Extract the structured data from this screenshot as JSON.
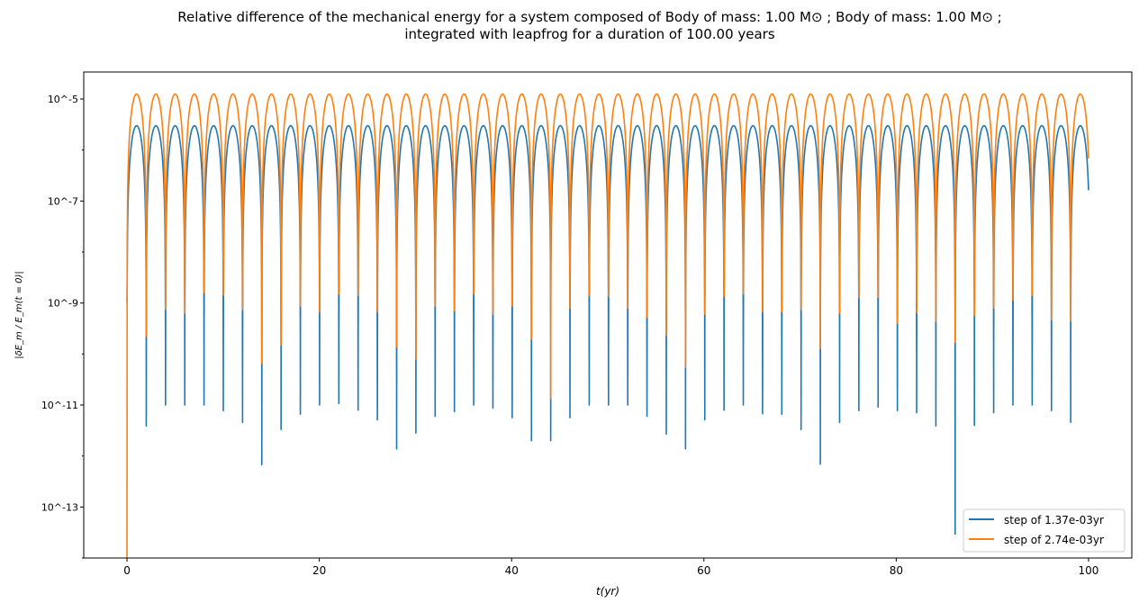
{
  "chart_data": {
    "type": "line",
    "title_line1": "Relative difference of the mechanical energy for a system composed of Body of mass: 1.00 M⊙ ; Body of mass: 1.00 M⊙ ;",
    "title_line2": "integrated with leapfrog for a duration of 100.00 years",
    "xlabel": "t(yr)",
    "ylabel": "|δE_m / E_m(t = 0)|",
    "xlim": [
      -4.5,
      104.5
    ],
    "ylim_log10": [
      -14.0,
      -4.47
    ],
    "yscale": "log",
    "xticks": [
      0,
      20,
      40,
      60,
      80,
      100
    ],
    "xtick_labels": [
      "0",
      "20",
      "40",
      "60",
      "80",
      "100"
    ],
    "yticks_log10": [
      -5,
      -7,
      -9,
      -11,
      -13
    ],
    "ytick_labels": [
      "10^-5",
      "10^-7",
      "10^-9",
      "10^-11",
      "10^-13"
    ],
    "legend_location": "lower-right",
    "period_yr": 2.003,
    "series": [
      {
        "name": "step of 1.37e-03yr",
        "color": "#1f77b4",
        "peak": 3e-06,
        "dip_minima_log10": [
          -9.0,
          -11.41,
          -11.0,
          -11.0,
          -11.0,
          -11.11,
          -11.34,
          -12.17,
          -11.48,
          -11.18,
          -11.0,
          -10.97,
          -11.1,
          -11.29,
          -11.86,
          -11.55,
          -11.22,
          -11.13,
          -11.0,
          -11.06,
          -11.25,
          -11.7,
          -11.7,
          -11.25,
          -11.0,
          -11.0,
          -11.0,
          -11.22,
          -11.57,
          -11.86,
          -11.29,
          -11.1,
          -11.0,
          -11.17,
          -11.18,
          -11.48,
          -12.16,
          -11.34,
          -11.11,
          -11.04,
          -11.11,
          -11.15,
          -11.41,
          -13.53,
          -11.4,
          -11.15,
          -11.0,
          -11.0,
          -11.11,
          -11.34
        ]
      },
      {
        "name": "step of 2.74e-03yr",
        "color": "#ff7f0e",
        "peak": 1.25e-05,
        "dip_minima_log10": [
          -14.0,
          -9.65,
          -9.12,
          -9.2,
          -8.8,
          -8.85,
          -9.13,
          -10.18,
          -9.82,
          -9.06,
          -9.17,
          -8.82,
          -8.85,
          -9.17,
          -9.86,
          -10.1,
          -9.06,
          -9.15,
          -8.82,
          -9.22,
          -9.06,
          -9.7,
          -10.87,
          -9.1,
          -8.85,
          -8.87,
          -9.1,
          -9.28,
          -9.63,
          -10.26,
          -9.22,
          -8.87,
          -8.82,
          -9.17,
          -9.17,
          -9.13,
          -9.89,
          -9.2,
          -8.89,
          -8.89,
          -9.4,
          -9.19,
          -9.36,
          -9.77,
          -9.24,
          -9.1,
          -8.94,
          -8.85,
          -9.33,
          -9.35
        ]
      }
    ]
  }
}
